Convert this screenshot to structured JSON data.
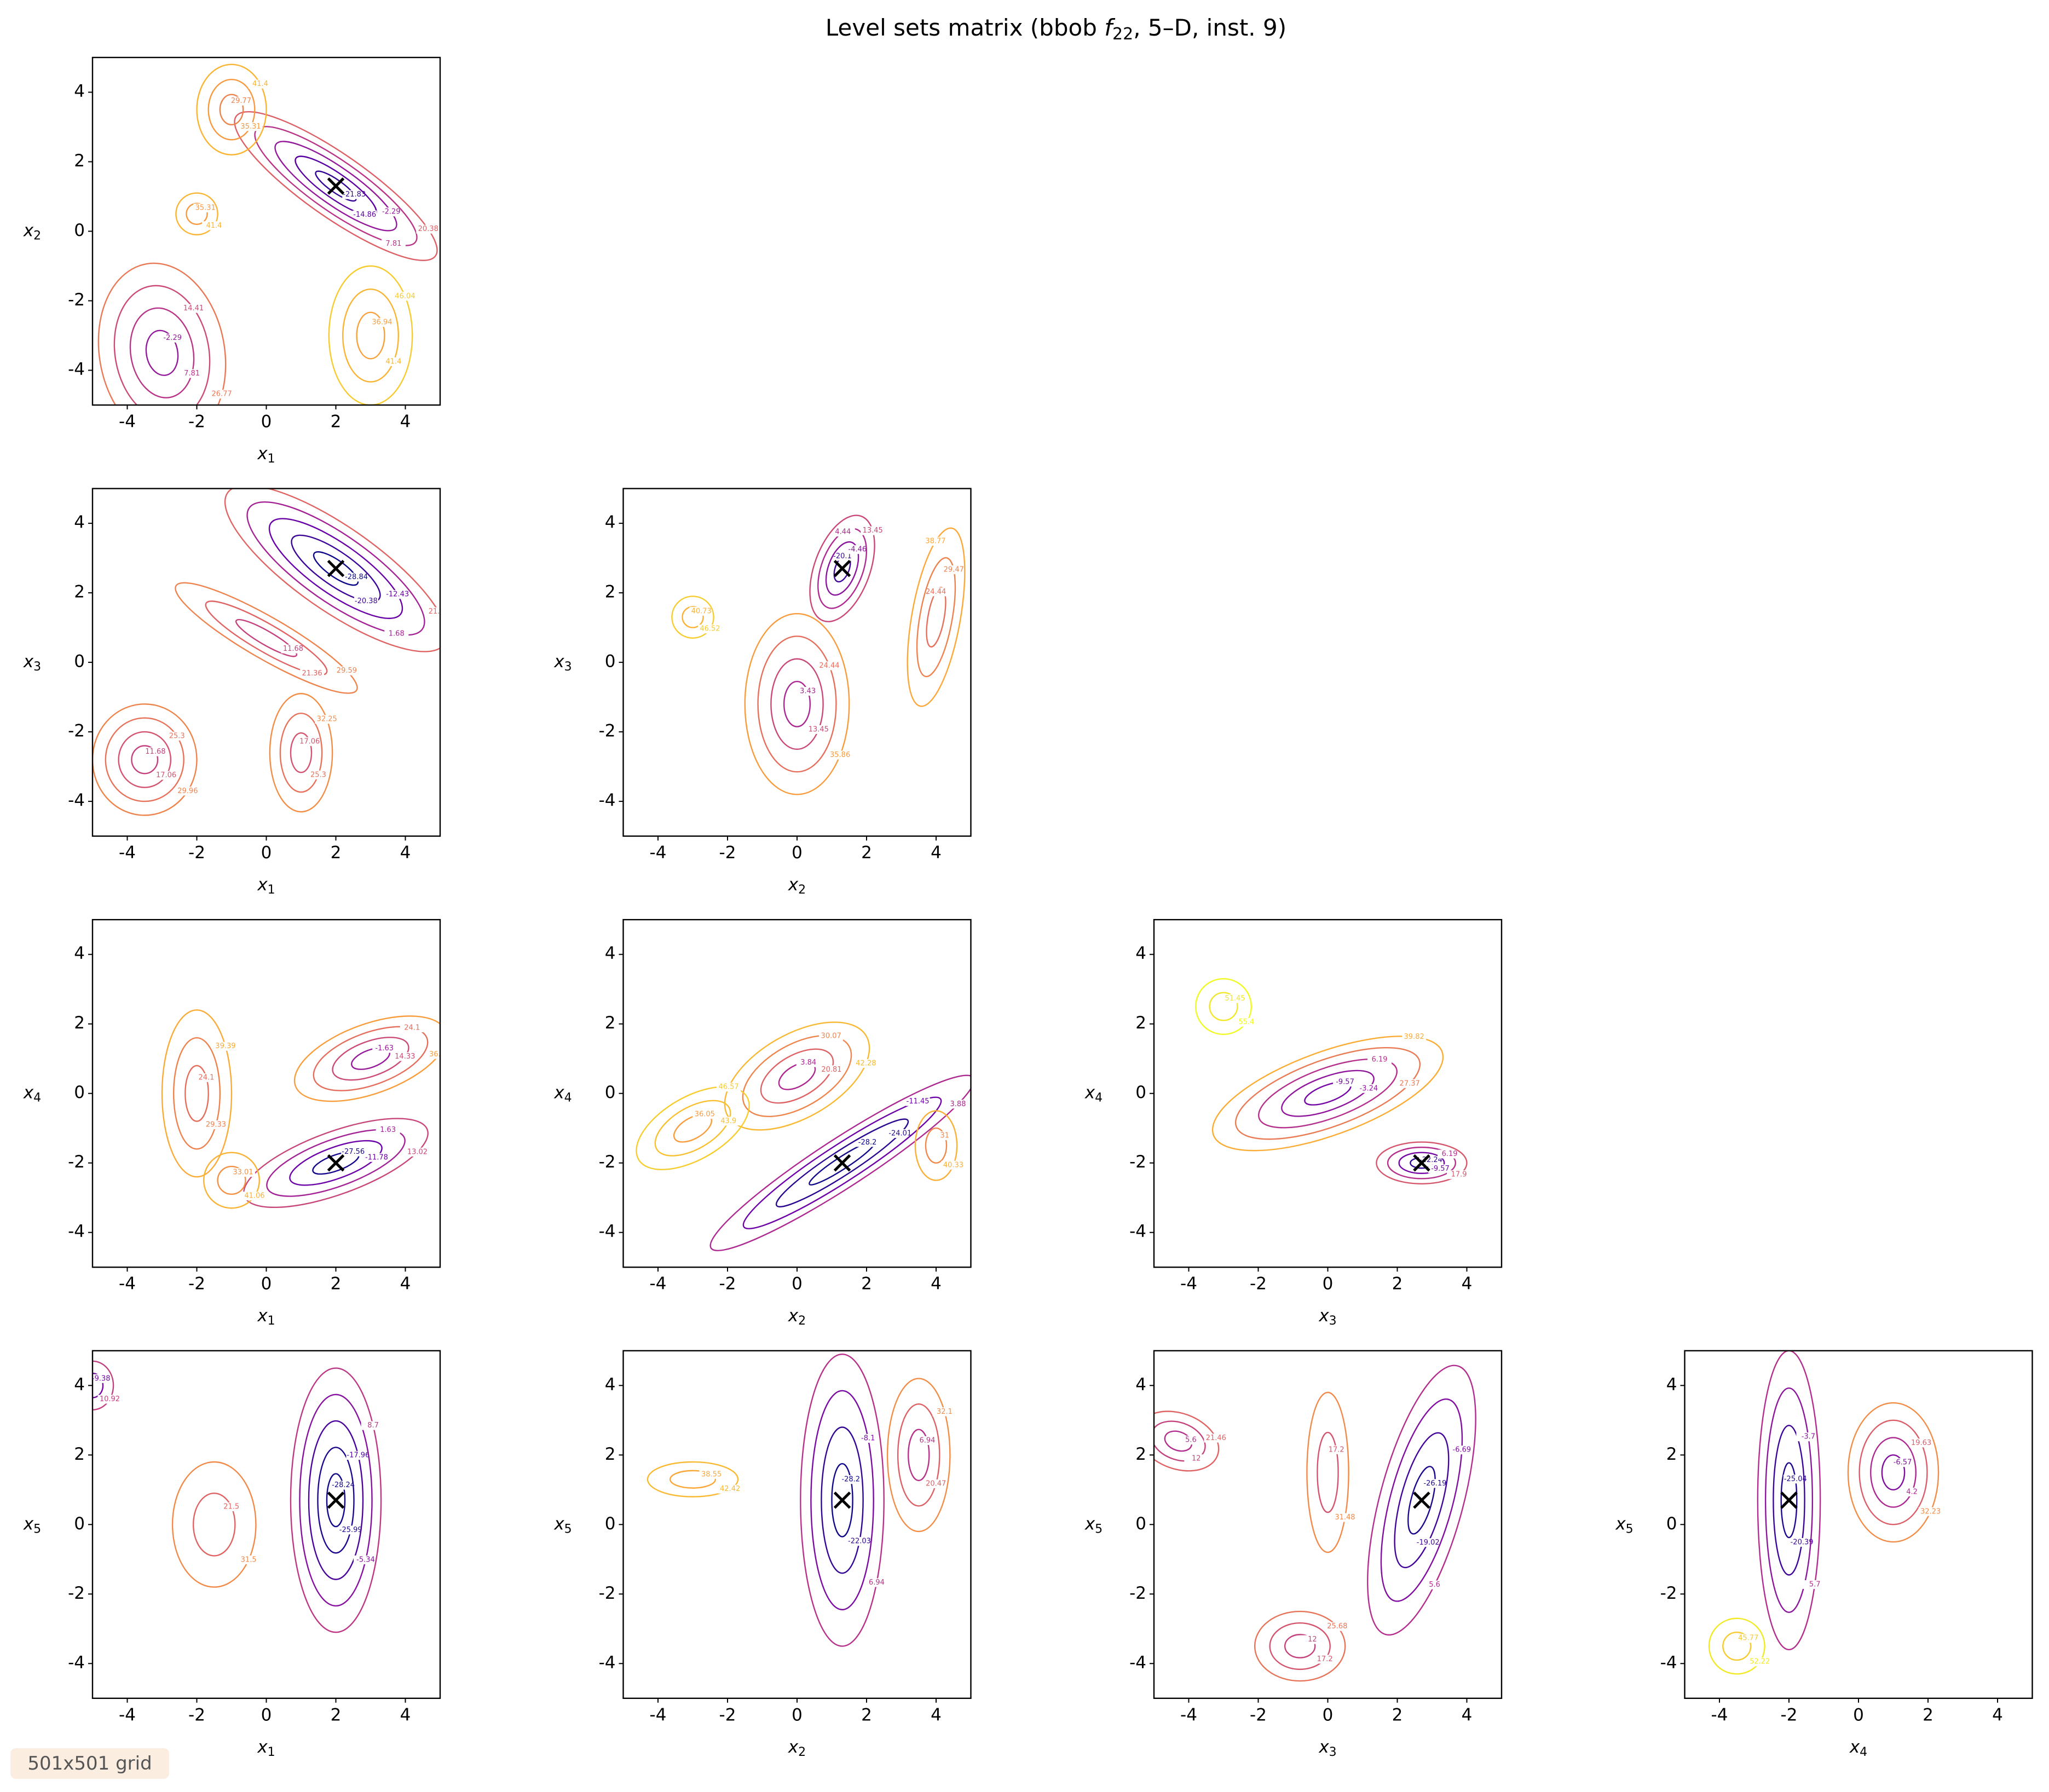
{
  "title": {
    "pre": "Level sets matrix (bbob ",
    "f": "f",
    "sub": "22",
    "post": ", 5–D, inst. 9)"
  },
  "footer": "501x501 grid",
  "chart_data": {
    "type": "contour",
    "xlim": [
      -5,
      5
    ],
    "ylim": [
      -5,
      5
    ],
    "xticks": [
      -4,
      -2,
      0,
      2,
      4
    ],
    "yticks": [
      -4,
      -2,
      0,
      2,
      4
    ],
    "panels": [
      {
        "xlabel": "x",
        "xsub": "1",
        "ylabel": "x",
        "ysub": "2",
        "optimum": [
          2,
          1.3
        ],
        "basins": [
          {
            "x": 2,
            "y": 1.3,
            "rx": 3.5,
            "ry": 0.9,
            "angle": -35,
            "levels": [
              -21.83,
              -14.86,
              -2.29,
              7.81,
              20.38
            ]
          },
          {
            "x": -3,
            "y": -3.5,
            "rx": 1.8,
            "ry": 2.6,
            "angle": 10,
            "levels": [
              -2.29,
              7.81,
              14.41,
              26.77
            ]
          },
          {
            "x": -1,
            "y": 3.5,
            "rx": 1,
            "ry": 1.3,
            "angle": 0,
            "levels": [
              29.77,
              35.31,
              41.4
            ]
          },
          {
            "x": -2,
            "y": 0.5,
            "rx": 0.6,
            "ry": 0.6,
            "angle": 0,
            "levels": [
              35.31,
              41.4
            ]
          },
          {
            "x": 3,
            "y": -3,
            "rx": 1.2,
            "ry": 2,
            "angle": 0,
            "levels": [
              36.94,
              41.4,
              46.04
            ]
          }
        ]
      },
      {
        "xlabel": "x",
        "xsub": "1",
        "ylabel": "x",
        "ysub": "3",
        "optimum": [
          2,
          2.7
        ],
        "basins": [
          {
            "x": 2,
            "y": 2.7,
            "rx": 3.8,
            "ry": 1.2,
            "angle": -35,
            "levels": [
              -28.84,
              -20.38,
              -12.43,
              1.68,
              21.36
            ]
          },
          {
            "x": 0,
            "y": 0.7,
            "rx": 3,
            "ry": 0.6,
            "angle": -30,
            "levels": [
              11.68,
              21.36,
              29.59
            ]
          },
          {
            "x": -3.5,
            "y": -2.8,
            "rx": 1.5,
            "ry": 1.6,
            "angle": 0,
            "levels": [
              11.68,
              17.06,
              25.3,
              29.96
            ]
          },
          {
            "x": 1,
            "y": -2.6,
            "rx": 0.9,
            "ry": 1.7,
            "angle": 0,
            "levels": [
              17.06,
              25.3,
              32.25
            ]
          }
        ]
      },
      {
        "xlabel": "x",
        "xsub": "2",
        "ylabel": "x",
        "ysub": "3",
        "optimum": [
          1.3,
          2.7
        ],
        "basins": [
          {
            "x": 1.3,
            "y": 2.7,
            "rx": 1.6,
            "ry": 0.8,
            "angle": 70,
            "levels": [
              -20.1,
              -4.46,
              4.44,
              13.45
            ]
          },
          {
            "x": 0,
            "y": -1.2,
            "rx": 1.5,
            "ry": 2.6,
            "angle": 0,
            "levels": [
              3.43,
              13.45,
              24.44,
              35.86
            ]
          },
          {
            "x": 4,
            "y": 1.3,
            "rx": 2.6,
            "ry": 0.7,
            "angle": 80,
            "levels": [
              24.44,
              29.47,
              38.77
            ]
          },
          {
            "x": -3,
            "y": 1.3,
            "rx": 0.6,
            "ry": 0.6,
            "angle": 0,
            "levels": [
              40.73,
              46.52
            ]
          }
        ]
      },
      {
        "xlabel": "x",
        "xsub": "1",
        "ylabel": "x",
        "ysub": "4",
        "optimum": [
          2,
          -2
        ],
        "basins": [
          {
            "x": 2,
            "y": -2,
            "rx": 2.8,
            "ry": 0.9,
            "angle": 20,
            "levels": [
              -27.56,
              -11.78,
              1.63,
              13.02
            ]
          },
          {
            "x": 3,
            "y": 1,
            "rx": 2.3,
            "ry": 1,
            "angle": 20,
            "levels": [
              -1.63,
              14.33,
              24.1,
              36.37
            ]
          },
          {
            "x": -2,
            "y": 0,
            "rx": 1,
            "ry": 2.4,
            "angle": 0,
            "levels": [
              24.1,
              29.33,
              39.39
            ]
          },
          {
            "x": -1,
            "y": -2.5,
            "rx": 0.8,
            "ry": 0.8,
            "angle": 0,
            "levels": [
              33.01,
              41.06
            ]
          }
        ]
      },
      {
        "xlabel": "x",
        "xsub": "2",
        "ylabel": "x",
        "ysub": "4",
        "optimum": [
          1.3,
          -2
        ],
        "basins": [
          {
            "x": 1.3,
            "y": -2,
            "rx": 4.5,
            "ry": 0.7,
            "angle": 33,
            "levels": [
              -28.2,
              -24.01,
              -11.45,
              3.88
            ]
          },
          {
            "x": 0,
            "y": 0.5,
            "rx": 2.3,
            "ry": 1.2,
            "angle": 30,
            "levels": [
              3.84,
              20.81,
              30.07,
              42.28
            ]
          },
          {
            "x": -3,
            "y": -1,
            "rx": 1.8,
            "ry": 0.9,
            "angle": 30,
            "levels": [
              36.05,
              43.9,
              46.57
            ]
          },
          {
            "x": 4,
            "y": -1.5,
            "rx": 0.6,
            "ry": 1,
            "angle": 0,
            "levels": [
              31,
              40.33
            ]
          }
        ]
      },
      {
        "xlabel": "x",
        "xsub": "3",
        "ylabel": "x",
        "ysub": "4",
        "optimum": [
          2.7,
          -2
        ],
        "basins": [
          {
            "x": 2.7,
            "y": -2,
            "rx": 1.3,
            "ry": 0.6,
            "angle": 0,
            "levels": [
              -22.24,
              -9.57,
              6.19,
              17.9
            ]
          },
          {
            "x": 0,
            "y": 0,
            "rx": 3.5,
            "ry": 1.2,
            "angle": 20,
            "levels": [
              -9.57,
              -3.24,
              6.19,
              27.37,
              39.82
            ]
          },
          {
            "x": -3,
            "y": 2.5,
            "rx": 0.8,
            "ry": 0.8,
            "angle": 0,
            "levels": [
              51.45,
              55.4
            ]
          }
        ]
      },
      {
        "xlabel": "x",
        "xsub": "1",
        "ylabel": "x",
        "ysub": "5",
        "optimum": [
          2,
          0.7
        ],
        "basins": [
          {
            "x": 2,
            "y": 0.7,
            "rx": 1.3,
            "ry": 3.8,
            "angle": 0,
            "levels": [
              -28.24,
              -25.99,
              -17.96,
              -5.34,
              8.7
            ]
          },
          {
            "x": -1.5,
            "y": 0,
            "rx": 1.2,
            "ry": 1.8,
            "angle": 0,
            "levels": [
              21.5,
              31.5
            ]
          },
          {
            "x": -5,
            "y": 4,
            "rx": 0.6,
            "ry": 0.7,
            "angle": 0,
            "levels": [
              -9.38,
              10.92
            ]
          }
        ]
      },
      {
        "xlabel": "x",
        "xsub": "2",
        "ylabel": "x",
        "ysub": "5",
        "optimum": [
          1.3,
          0.7
        ],
        "basins": [
          {
            "x": 1.3,
            "y": 0.7,
            "rx": 1.2,
            "ry": 4.2,
            "angle": 0,
            "levels": [
              -28.2,
              -22.03,
              -8.1,
              6.94
            ]
          },
          {
            "x": 3.5,
            "y": 2,
            "rx": 0.9,
            "ry": 2.2,
            "angle": 0,
            "levels": [
              6.94,
              20.47,
              32.1
            ]
          },
          {
            "x": -3,
            "y": 1.3,
            "rx": 1.3,
            "ry": 0.5,
            "angle": 0,
            "levels": [
              38.55,
              42.42
            ]
          }
        ]
      },
      {
        "xlabel": "x",
        "xsub": "3",
        "ylabel": "x",
        "ysub": "5",
        "optimum": [
          2.7,
          0.7
        ],
        "basins": [
          {
            "x": 2.7,
            "y": 0.7,
            "rx": 1.2,
            "ry": 4,
            "angle": -15,
            "levels": [
              -26.19,
              -19.02,
              -6.69,
              5.6
            ]
          },
          {
            "x": -4.3,
            "y": 2.4,
            "rx": 1.2,
            "ry": 0.8,
            "angle": -20,
            "levels": [
              5.6,
              12,
              21.46
            ]
          },
          {
            "x": -0.8,
            "y": -3.5,
            "rx": 1.3,
            "ry": 1,
            "angle": 0,
            "levels": [
              12,
              17.2,
              25.68
            ]
          },
          {
            "x": 0,
            "y": 1.5,
            "rx": 0.6,
            "ry": 2.3,
            "angle": 0,
            "levels": [
              17.2,
              31.48
            ]
          }
        ]
      },
      {
        "xlabel": "x",
        "xsub": "4",
        "ylabel": "x",
        "ysub": "5",
        "optimum": [
          -2,
          0.7
        ],
        "basins": [
          {
            "x": -2,
            "y": 0.7,
            "rx": 0.9,
            "ry": 4.3,
            "angle": 0,
            "levels": [
              -25.04,
              -20.39,
              -3.7,
              5.7
            ]
          },
          {
            "x": 1,
            "y": 1.5,
            "rx": 1.3,
            "ry": 2,
            "angle": 0,
            "levels": [
              -6.57,
              4.2,
              19.63,
              32.23
            ]
          },
          {
            "x": -3.5,
            "y": -3.5,
            "rx": 0.8,
            "ry": 0.8,
            "angle": 0,
            "levels": [
              45.77,
              52.22
            ]
          }
        ]
      }
    ]
  }
}
